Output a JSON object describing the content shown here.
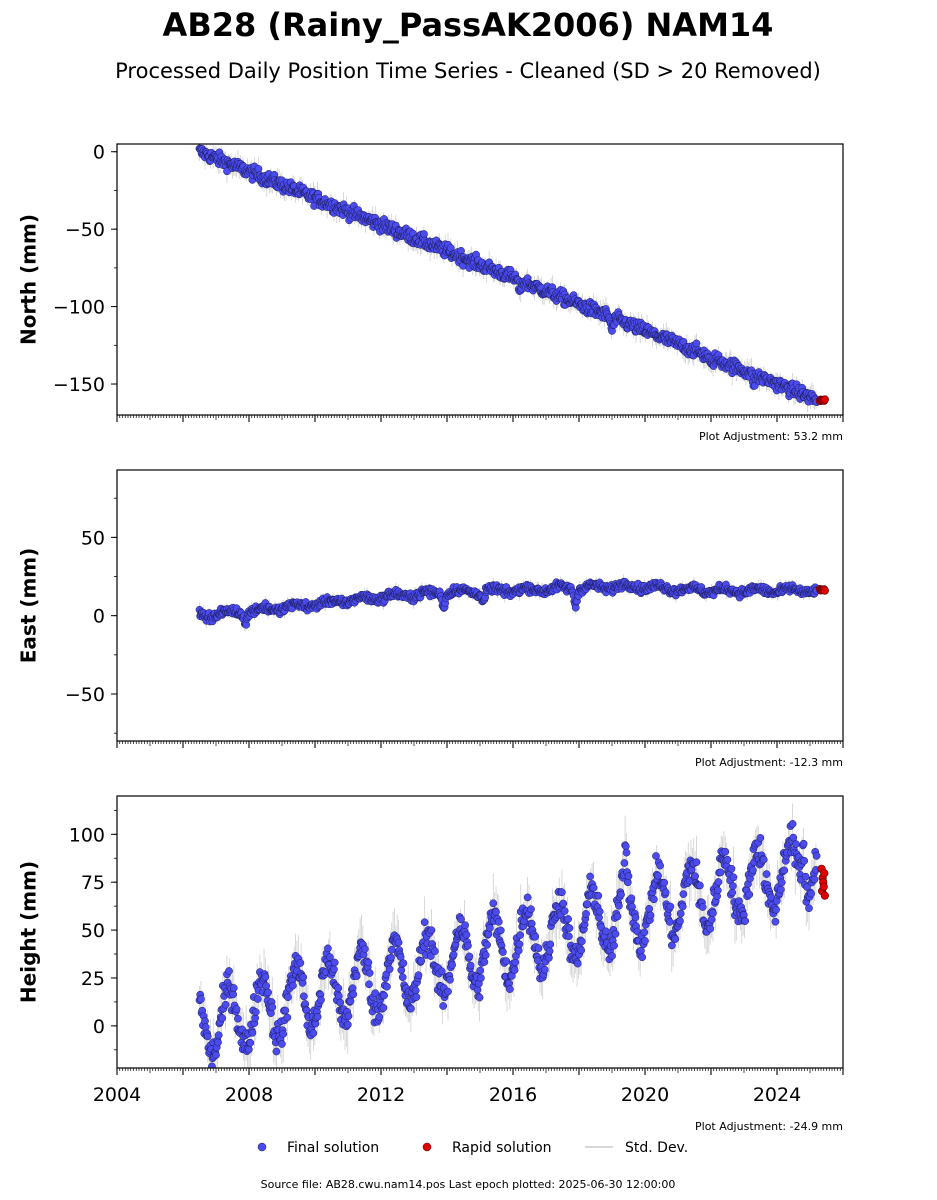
{
  "title": "AB28 (Rainy_PassAK2006) NAM14",
  "subtitle": "Processed Daily Position Time Series - Cleaned (SD > 20 Removed)",
  "footer": "Source file: AB28.cwu.nam14.pos  Last epoch plotted: 2025-06-30 12:00:00",
  "legend": {
    "position": "bottom-center",
    "entries": [
      {
        "label": "Final solution",
        "color": "#4b4bf0",
        "kind": "marker"
      },
      {
        "label": "Rapid solution",
        "color": "#e00000",
        "kind": "marker"
      },
      {
        "label": "Std. Dev.",
        "color": "#cccccc",
        "kind": "line"
      }
    ]
  },
  "colors": {
    "final": "#4b4bf0",
    "final_edge": "#1a1a55",
    "rapid": "#e00000",
    "stddev": "#bbbbbb"
  },
  "chart_data": [
    {
      "type": "scatter",
      "ylabel": "North (mm)",
      "xlim": [
        2004,
        2026
      ],
      "ylim": [
        -170,
        5
      ],
      "yticks": [
        0,
        -50,
        -100,
        -150
      ],
      "adjustment": "Plot Adjustment: 53.2 mm",
      "show_xticklabels": false,
      "trend": [
        [
          2006.5,
          0
        ],
        [
          2025.3,
          -161
        ]
      ],
      "noise": 3,
      "seasonal": 0,
      "excursions": [
        [
          2019.0,
          -8
        ],
        [
          2016.2,
          -6
        ],
        [
          2022.0,
          -6
        ],
        [
          2023.3,
          -5
        ]
      ],
      "series": [
        {
          "name": "Final solution",
          "x": [
            2006.5,
            2025.2
          ],
          "y": [
            0,
            -160
          ]
        },
        {
          "name": "Rapid solution",
          "x": [
            2025.3,
            2025.45
          ],
          "y": [
            -160,
            -161
          ]
        }
      ]
    },
    {
      "type": "scatter",
      "ylabel": "East (mm)",
      "xlim": [
        2004,
        2026
      ],
      "ylim": [
        -80,
        93
      ],
      "yticks": [
        50,
        0,
        -50
      ],
      "adjustment": "Plot Adjustment: -12.3 mm",
      "show_xticklabels": false,
      "trend": [
        [
          2006.5,
          0
        ],
        [
          2009.0,
          5
        ],
        [
          2012.0,
          12
        ],
        [
          2014.0,
          15
        ],
        [
          2017.0,
          17
        ],
        [
          2019.5,
          19
        ],
        [
          2022.0,
          16
        ],
        [
          2025.4,
          16
        ]
      ],
      "noise": 1.8,
      "seasonal": 1.5,
      "excursions": [
        [
          2013.9,
          -8
        ],
        [
          2015.1,
          -7
        ],
        [
          2017.9,
          -10
        ],
        [
          2007.9,
          -6
        ]
      ],
      "series": [
        {
          "name": "Final solution",
          "x": [
            2006.5,
            2025.2
          ],
          "y": [
            0,
            16
          ]
        },
        {
          "name": "Rapid solution",
          "x": [
            2025.3,
            2025.45
          ],
          "y": [
            16,
            17
          ]
        }
      ]
    },
    {
      "type": "scatter",
      "ylabel": "Height (mm)",
      "xlim": [
        2004,
        2026
      ],
      "ylim": [
        -22,
        120
      ],
      "yticks": [
        100,
        75,
        50,
        25,
        0
      ],
      "xticks": [
        2004,
        2008,
        2012,
        2016,
        2020,
        2024
      ],
      "adjustment": "Plot Adjustment: -24.9 mm",
      "show_xticklabels": true,
      "trend": [
        [
          2006.5,
          0
        ],
        [
          2025.4,
          85
        ]
      ],
      "noise": 6,
      "seasonal": 17,
      "excursions": [
        [
          2019.4,
          20
        ],
        [
          2024.8,
          25
        ],
        [
          2009.6,
          12
        ]
      ],
      "series": [
        {
          "name": "Final solution",
          "x": [
            2006.5,
            2025.2
          ],
          "y": [
            0,
            85
          ]
        },
        {
          "name": "Rapid solution",
          "x": [
            2025.35,
            2025.45
          ],
          "y": [
            68,
            82
          ]
        }
      ]
    }
  ]
}
